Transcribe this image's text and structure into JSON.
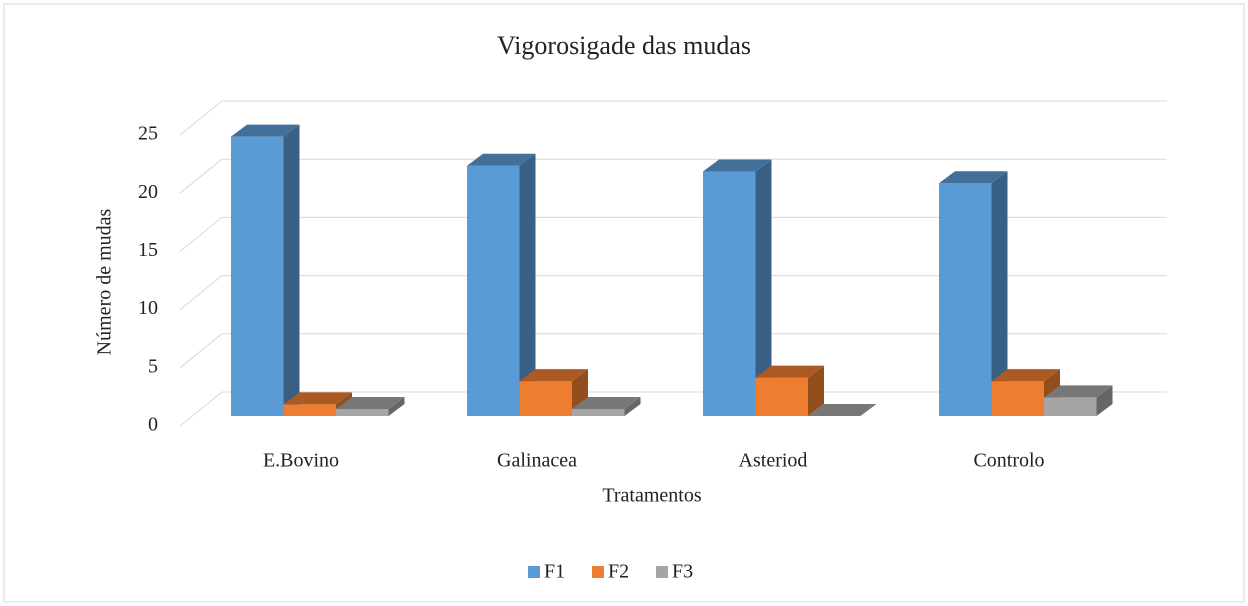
{
  "chart_data": {
    "type": "bar3d",
    "title": "Vigorosigade das mudas",
    "x_label": "Tratamentos",
    "y_label": "Número de mudas",
    "categories": [
      "E.Bovino",
      "Galinacea",
      "Asteriod",
      "Controlo"
    ],
    "series": [
      {
        "name": "F1",
        "color": "#5b9bd5",
        "values": [
          24,
          21.5,
          21,
          20
        ]
      },
      {
        "name": "F2",
        "color": "#ed7d31",
        "values": [
          1,
          3,
          3.3,
          3
        ]
      },
      {
        "name": "F3",
        "color": "#a5a5a5",
        "values": [
          0.6,
          0.6,
          0,
          1.6
        ]
      }
    ],
    "ylim": [
      0,
      25
    ],
    "yticks": [
      0,
      5,
      10,
      15,
      20,
      25
    ],
    "grid": true,
    "legend": "bottom"
  }
}
